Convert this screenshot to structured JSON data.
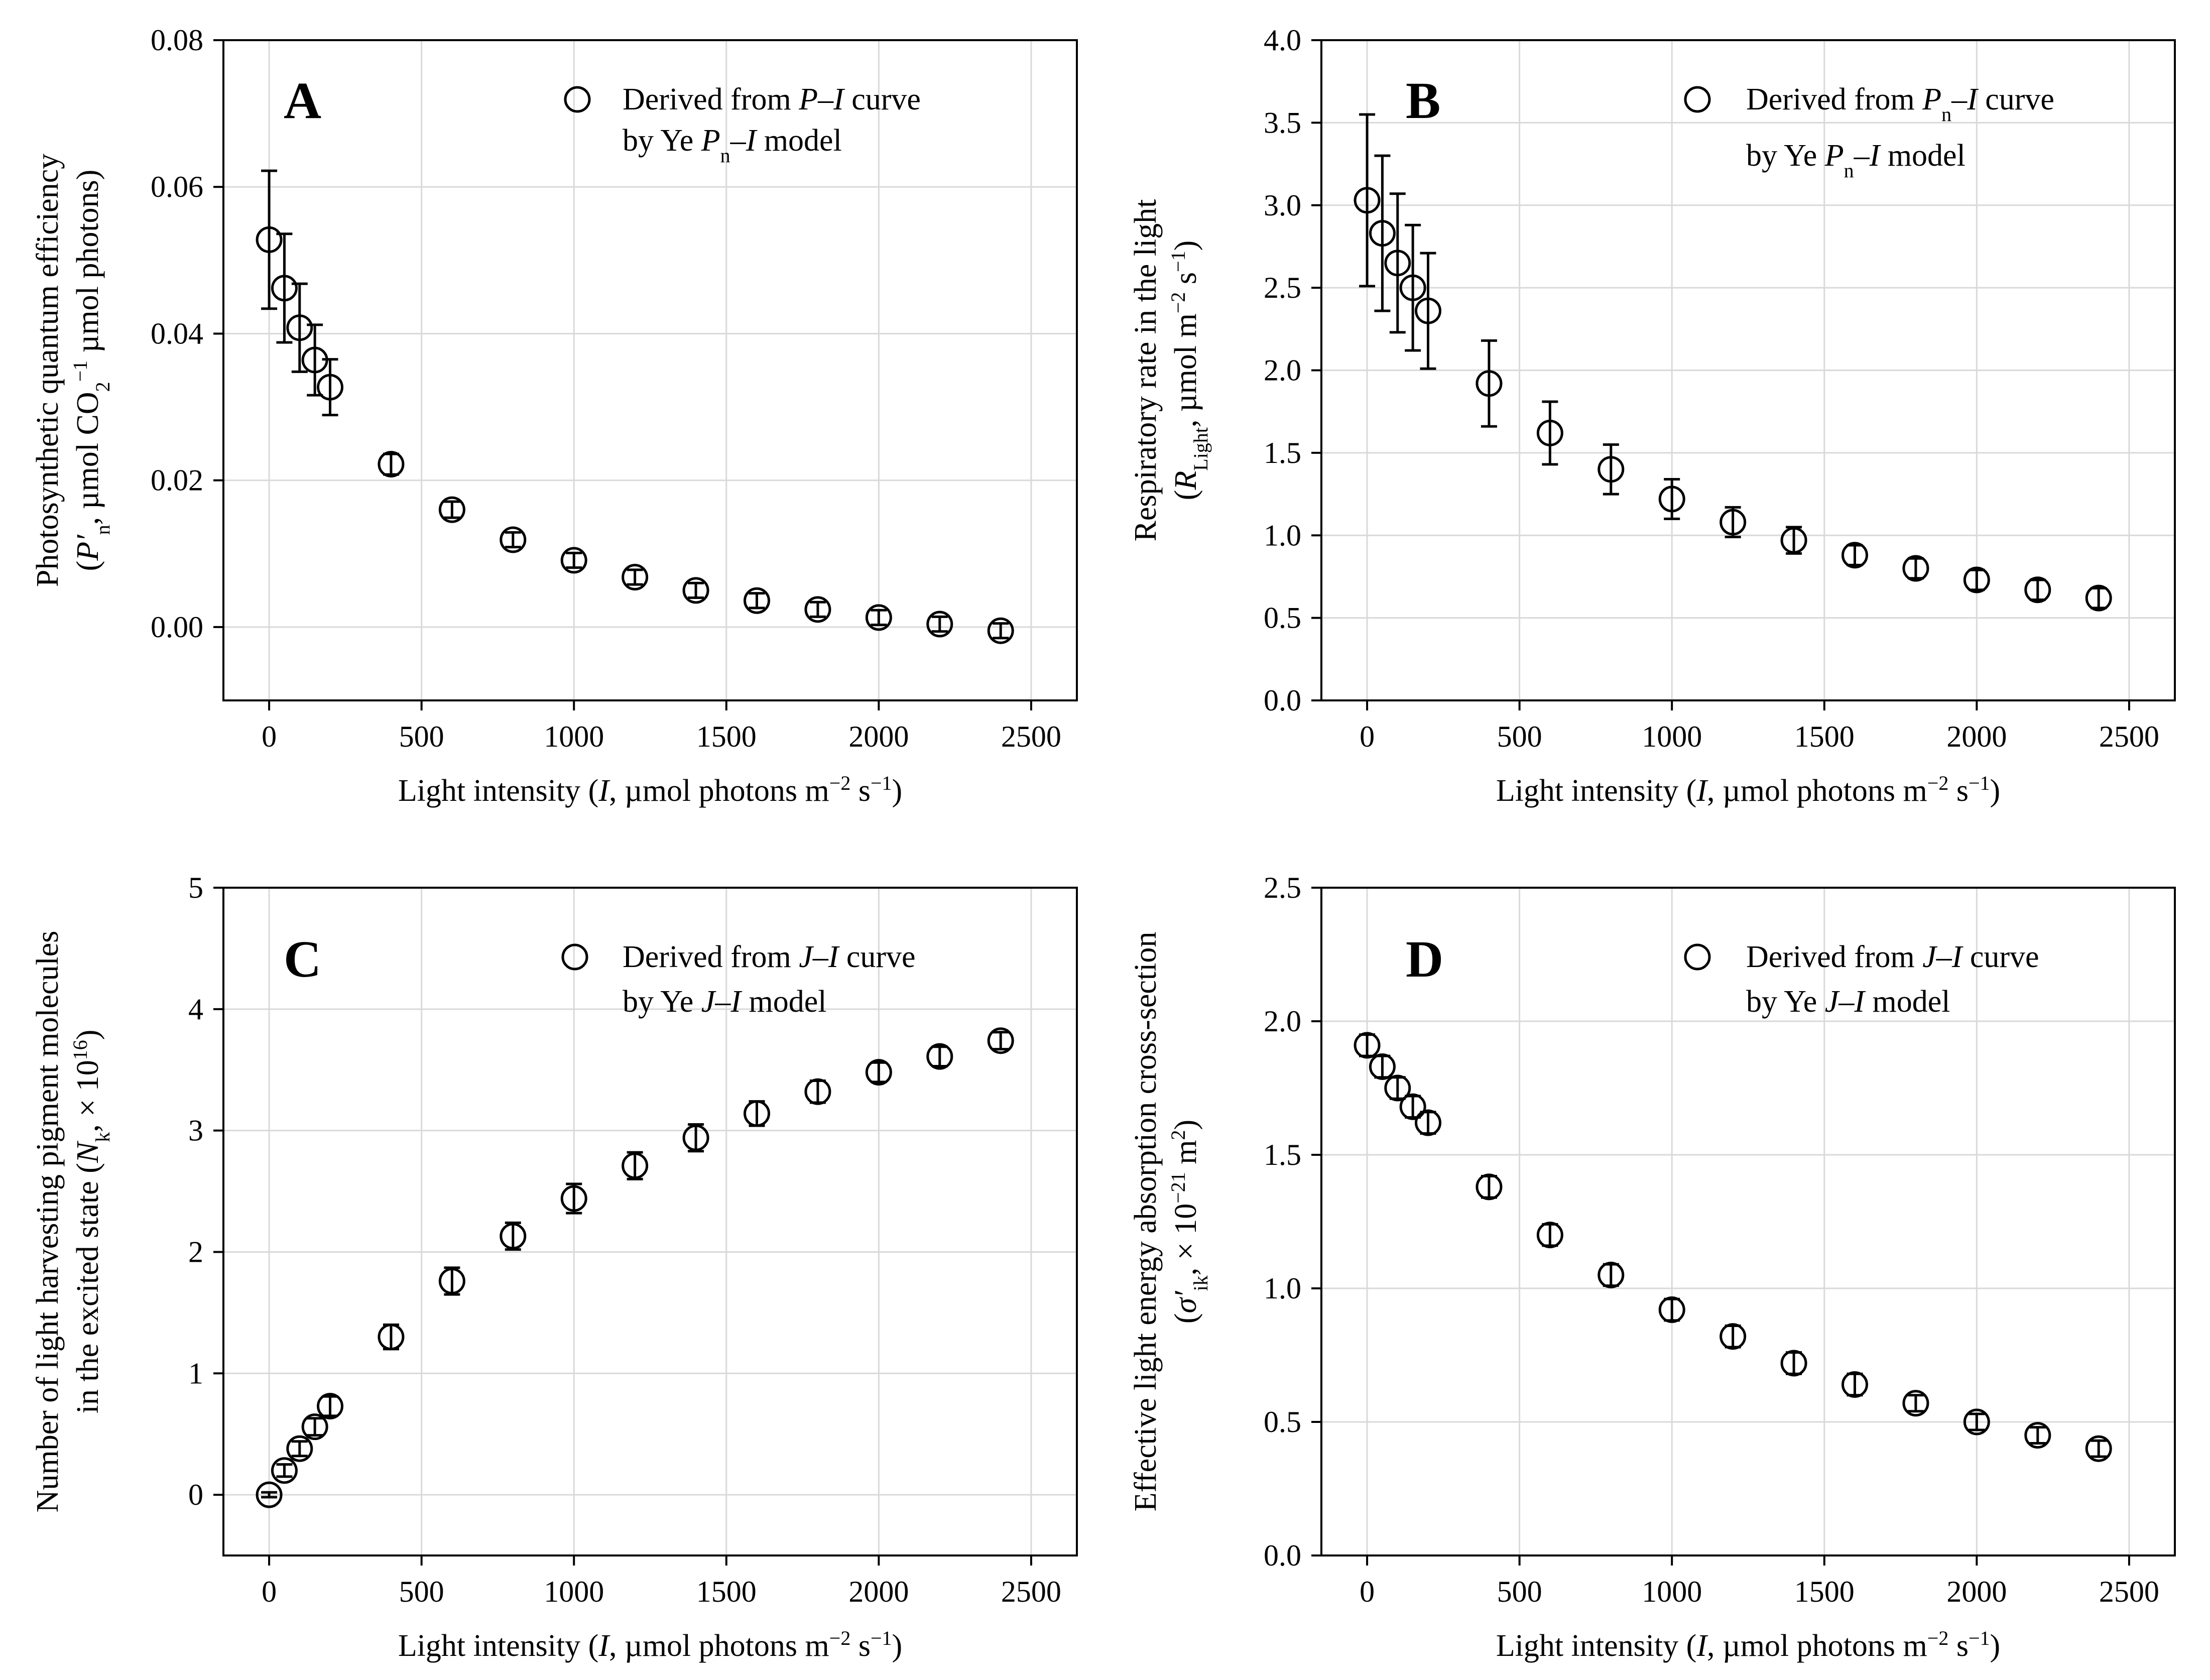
{
  "figure": {
    "colors": {
      "ink": "#000000",
      "background": "#ffffff",
      "gridline": "#d9d9d9"
    }
  },
  "chart_data": [
    {
      "type": "scatter",
      "panel_label": "A",
      "xlabel": {
        "pre": "Light intensity (",
        "var": "I",
        "post": ", µmol photons m",
        "sup1": "−2",
        "mid": " s",
        "sup2": "−1",
        "end": ")"
      },
      "ylabel_line1": "Photosynthetic quantum efficiency",
      "ylabel_line2": {
        "open": "(",
        "var": "P′",
        "sub": "n",
        "mid": ", µmol CO",
        "sub2": "2",
        "post": " µmol photons",
        "sup": "−1",
        "close": ")"
      },
      "legend": {
        "line1_pre": "Derived from ",
        "line1_var": "P",
        "line1_post": "–I curve",
        "line2_pre": "by Ye ",
        "line2_var": "P",
        "line2_sub": "n",
        "line2_post": "–I model"
      },
      "xlim": [
        -150,
        2650
      ],
      "ylim": [
        -0.01,
        0.08
      ],
      "xticks": [
        0,
        500,
        1000,
        1500,
        2000,
        2500
      ],
      "yticks": [
        0.0,
        0.02,
        0.04,
        0.06,
        0.08
      ],
      "ytick_labels": [
        "0.00",
        "0.02",
        "0.04",
        "0.06",
        "0.08"
      ],
      "grid": true,
      "legend_position": "top-right",
      "marker": "open-circle",
      "x": [
        0,
        50,
        100,
        150,
        200,
        400,
        600,
        800,
        1000,
        1200,
        1400,
        1600,
        1800,
        2000,
        2200,
        2400
      ],
      "y": [
        0.0528,
        0.0462,
        0.0408,
        0.0364,
        0.0327,
        0.0222,
        0.016,
        0.0119,
        0.0091,
        0.0068,
        0.005,
        0.0036,
        0.0024,
        0.0013,
        0.0004,
        -0.0005
      ],
      "yerr": [
        0.0094,
        0.0074,
        0.006,
        0.0048,
        0.0038,
        0.0014,
        0.0011,
        0.001,
        0.001,
        0.001,
        0.001,
        0.001,
        0.001,
        0.001,
        0.001,
        0.001
      ]
    },
    {
      "type": "scatter",
      "panel_label": "B",
      "xlabel": {
        "pre": "Light intensity (",
        "var": "I",
        "post": ", µmol photons m",
        "sup1": "−2",
        "mid": " s",
        "sup2": "−1",
        "end": ")"
      },
      "ylabel_line1": "Respiratory rate in the light",
      "ylabel_line2": {
        "open": "(",
        "var": "R",
        "sub": "Light",
        "mid": ", µmol m",
        "sup": "−2",
        "mid2": " s",
        "sup2": "−1",
        "close": ")"
      },
      "legend": {
        "line1_pre": "Derived from ",
        "line1_var": "P",
        "line1_sub": "n",
        "line1_post": "–I curve",
        "line2_pre": "by Ye ",
        "line2_var": "P",
        "line2_sub": "n",
        "line2_post": "–I model"
      },
      "xlim": [
        -150,
        2650
      ],
      "ylim": [
        0.0,
        4.0
      ],
      "xticks": [
        0,
        500,
        1000,
        1500,
        2000,
        2500
      ],
      "yticks": [
        0.0,
        0.5,
        1.0,
        1.5,
        2.0,
        2.5,
        3.0,
        3.5,
        4.0
      ],
      "ytick_labels": [
        "0.0",
        "0.5",
        "1.0",
        "1.5",
        "2.0",
        "2.5",
        "3.0",
        "3.5",
        "4.0"
      ],
      "grid": true,
      "legend_position": "top-right",
      "marker": "open-circle",
      "x": [
        0,
        50,
        100,
        150,
        200,
        400,
        600,
        800,
        1000,
        1200,
        1400,
        1600,
        1800,
        2000,
        2200,
        2400
      ],
      "y": [
        3.03,
        2.83,
        2.65,
        2.5,
        2.36,
        1.92,
        1.62,
        1.4,
        1.22,
        1.08,
        0.97,
        0.88,
        0.8,
        0.73,
        0.67,
        0.62
      ],
      "yerr": [
        0.52,
        0.47,
        0.42,
        0.38,
        0.35,
        0.26,
        0.19,
        0.15,
        0.12,
        0.09,
        0.08,
        0.06,
        0.06,
        0.06,
        0.06,
        0.06
      ]
    },
    {
      "type": "scatter",
      "panel_label": "C",
      "xlabel": {
        "pre": "Light intensity (",
        "var": "I",
        "post": ", µmol photons m",
        "sup1": "−2",
        "mid": " s",
        "sup2": "−1",
        "end": ")"
      },
      "ylabel_line1": "Number of light harvesting pigment molecules",
      "ylabel_line2": {
        "open": "in the excited state (",
        "var": "N",
        "sub": "k",
        "mid": ", × 10",
        "sup": "16",
        "close": ")"
      },
      "legend": {
        "line1_pre": "Derived from ",
        "line1_var": "J",
        "line1_post": "–I curve",
        "line2_pre": "by Ye ",
        "line2_var": "J",
        "line2_post": "–I model"
      },
      "xlim": [
        -150,
        2650
      ],
      "ylim": [
        -0.5,
        5.0
      ],
      "xticks": [
        0,
        500,
        1000,
        1500,
        2000,
        2500
      ],
      "yticks": [
        0,
        1,
        2,
        3,
        4,
        5
      ],
      "ytick_labels": [
        "0",
        "1",
        "2",
        "3",
        "4",
        "5"
      ],
      "grid": true,
      "legend_position": "top-right",
      "marker": "open-circle",
      "x": [
        0,
        50,
        100,
        150,
        200,
        400,
        600,
        800,
        1000,
        1200,
        1400,
        1600,
        1800,
        2000,
        2200,
        2400
      ],
      "y": [
        0.0,
        0.2,
        0.38,
        0.56,
        0.73,
        1.3,
        1.76,
        2.13,
        2.44,
        2.71,
        2.94,
        3.14,
        3.32,
        3.48,
        3.61,
        3.74
      ],
      "yerr": [
        0.02,
        0.05,
        0.06,
        0.07,
        0.08,
        0.1,
        0.11,
        0.11,
        0.12,
        0.11,
        0.11,
        0.1,
        0.09,
        0.08,
        0.08,
        0.07
      ]
    },
    {
      "type": "scatter",
      "panel_label": "D",
      "xlabel": {
        "pre": "Light intensity (",
        "var": "I",
        "post": ", µmol photons m",
        "sup1": "−2",
        "mid": " s",
        "sup2": "−1",
        "end": ")"
      },
      "ylabel_line1": "Effective light energy absorption cross-section",
      "ylabel_line2": {
        "open": "(",
        "var": "σ′",
        "sub": "ik",
        "mid": ", × 10",
        "sup": "−21",
        "post": " m",
        "sup2": "2",
        "close": ")"
      },
      "legend": {
        "line1_pre": "Derived from ",
        "line1_var": "J",
        "line1_post": "–I curve",
        "line2_pre": "by Ye ",
        "line2_var": "J",
        "line2_post": "–I model"
      },
      "xlim": [
        -150,
        2650
      ],
      "ylim": [
        0.0,
        2.5
      ],
      "xticks": [
        0,
        500,
        1000,
        1500,
        2000,
        2500
      ],
      "yticks": [
        0.0,
        0.5,
        1.0,
        1.5,
        2.0,
        2.5
      ],
      "ytick_labels": [
        "0.0",
        "0.5",
        "1.0",
        "1.5",
        "2.0",
        "2.5"
      ],
      "grid": true,
      "legend_position": "top-right",
      "marker": "open-circle",
      "x": [
        0,
        50,
        100,
        150,
        200,
        400,
        600,
        800,
        1000,
        1200,
        1400,
        1600,
        1800,
        2000,
        2200,
        2400
      ],
      "y": [
        1.91,
        1.83,
        1.75,
        1.68,
        1.62,
        1.38,
        1.2,
        1.05,
        0.92,
        0.82,
        0.72,
        0.64,
        0.57,
        0.5,
        0.45,
        0.4
      ],
      "yerr": [
        0.04,
        0.04,
        0.04,
        0.04,
        0.04,
        0.04,
        0.04,
        0.04,
        0.04,
        0.04,
        0.04,
        0.04,
        0.03,
        0.03,
        0.03,
        0.03
      ]
    }
  ]
}
